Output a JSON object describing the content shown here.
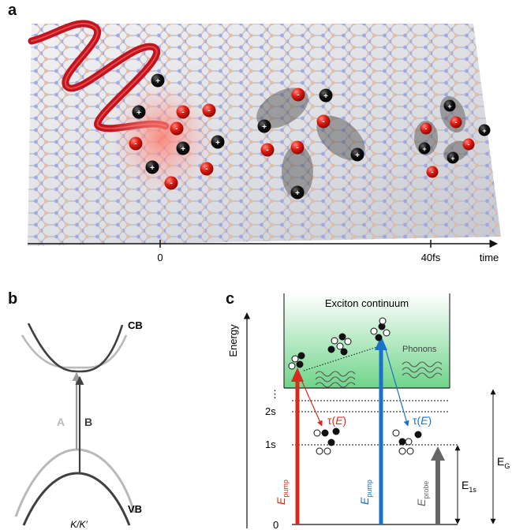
{
  "panels": {
    "a": {
      "label": "a",
      "tick_0": "0",
      "tick_40": "40fs",
      "axis_label": "time",
      "plus_sign": "+",
      "minus_sign": "-"
    },
    "b": {
      "label": "b",
      "cb": "CB",
      "vb": "VB",
      "transition_a": "A",
      "transition_b": "B",
      "valley": "K/K′",
      "colors": {
        "band_a": "#b9b9b9",
        "band_b": "#404040"
      }
    },
    "c": {
      "label": "c",
      "continuum": "Exciton continuum",
      "phonons": "Phonons",
      "energy_axis": "Energy",
      "level_2s": "2s",
      "level_1s": "1s",
      "level_0": "0",
      "dots": "⋮",
      "tau_prefix": "τ(",
      "tau_var": "E",
      "tau_suffix": ")",
      "e_letter": "E",
      "e_pump_sub": "pump",
      "e_probe_sub": "probe",
      "e_1s_sub": "1s",
      "e_g_sub": "G",
      "colors": {
        "red": "#d62b1e",
        "blue": "#1a72c8",
        "gray": "#666666",
        "continuum_top": "#ffffff",
        "continuum_bottom": "#6fd48a"
      }
    }
  }
}
